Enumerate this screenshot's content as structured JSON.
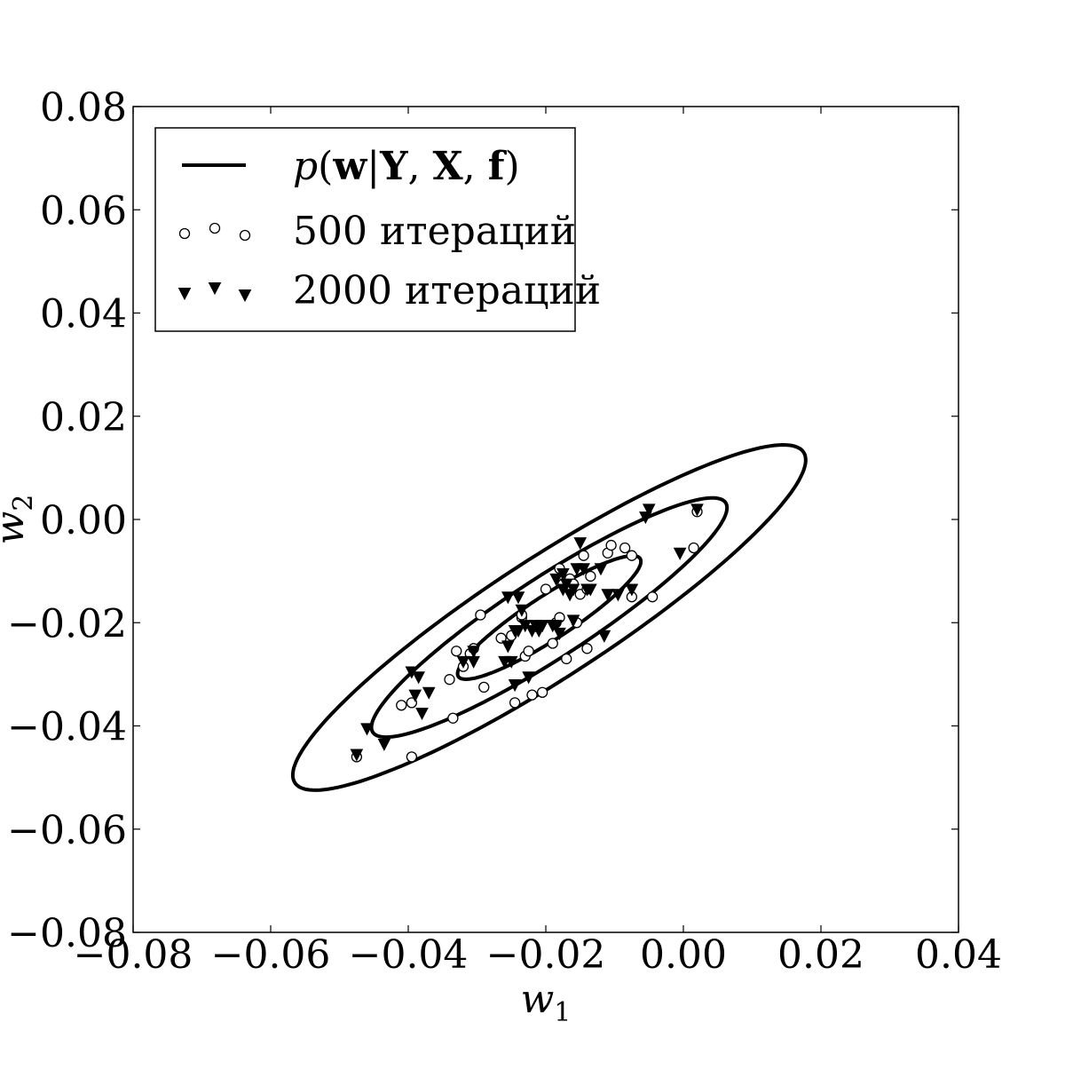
{
  "chart_data": {
    "type": "scatter",
    "title": "",
    "xlabel": "w",
    "xlabel_sub": "1",
    "ylabel": "w",
    "ylabel_sub": "2",
    "xlim": [
      -0.08,
      0.04
    ],
    "ylim": [
      -0.08,
      0.08
    ],
    "xticks": [
      -0.08,
      -0.06,
      -0.04,
      -0.02,
      0.0,
      0.02,
      0.04
    ],
    "xtick_labels": [
      "−0.08",
      "−0.06",
      "−0.04",
      "−0.02",
      "0.00",
      "0.02",
      "0.04"
    ],
    "yticks": [
      0.08,
      0.06,
      0.04,
      0.02,
      0.0,
      -0.02,
      -0.04,
      -0.06,
      -0.08
    ],
    "ytick_labels": [
      "0.08",
      "0.06",
      "0.04",
      "0.02",
      "0.00",
      "−0.02",
      "−0.04",
      "−0.06",
      "−0.08"
    ],
    "grid": false,
    "legend_position": "top-left",
    "legend": {
      "contour_label": {
        "p": "p",
        "open": "(",
        "w": "w",
        "bar": "|",
        "Y": "Y",
        "sep1": ", ",
        "X": "X",
        "sep2": ", ",
        "f": "f",
        "close": ")"
      },
      "series_labels": [
        "500 итераций",
        "2000 итераций"
      ]
    },
    "contours": {
      "name": "p(w|Y,X,f)",
      "style": "line",
      "color": "#000000",
      "ellipses": [
        {
          "center": [
            -0.0195,
            -0.019
          ],
          "semi_major": 0.049,
          "semi_minor": 0.0104,
          "angle_deg": 41.6
        },
        {
          "center": [
            -0.0195,
            -0.019
          ],
          "semi_major": 0.034,
          "semi_minor": 0.007,
          "angle_deg": 41.6
        },
        {
          "center": [
            -0.0195,
            -0.019
          ],
          "semi_major": 0.0175,
          "semi_minor": 0.0038,
          "angle_deg": 41.6
        }
      ]
    },
    "series": [
      {
        "name": "500 итераций",
        "marker": "circle-open",
        "color": "#000000",
        "points": [
          [
            -0.0475,
            -0.046
          ],
          [
            -0.0395,
            -0.0355
          ],
          [
            -0.041,
            -0.036
          ],
          [
            -0.0395,
            -0.046
          ],
          [
            -0.034,
            -0.031
          ],
          [
            -0.0335,
            -0.0385
          ],
          [
            -0.033,
            -0.0255
          ],
          [
            -0.032,
            -0.0285
          ],
          [
            -0.031,
            -0.026
          ],
          [
            -0.0305,
            -0.025
          ],
          [
            -0.0295,
            -0.0185
          ],
          [
            -0.029,
            -0.0325
          ],
          [
            -0.0265,
            -0.023
          ],
          [
            -0.025,
            -0.0225
          ],
          [
            -0.0245,
            -0.0355
          ],
          [
            -0.0235,
            -0.019
          ],
          [
            -0.0235,
            -0.0185
          ],
          [
            -0.023,
            -0.0265
          ],
          [
            -0.0225,
            -0.0255
          ],
          [
            -0.022,
            -0.034
          ],
          [
            -0.0205,
            -0.0335
          ],
          [
            -0.02,
            -0.0135
          ],
          [
            -0.019,
            -0.024
          ],
          [
            -0.0185,
            -0.02
          ],
          [
            -0.018,
            -0.019
          ],
          [
            -0.018,
            -0.0095
          ],
          [
            -0.0175,
            -0.0125
          ],
          [
            -0.017,
            -0.027
          ],
          [
            -0.0165,
            -0.0115
          ],
          [
            -0.016,
            -0.0125
          ],
          [
            -0.0155,
            -0.02
          ],
          [
            -0.015,
            -0.0145
          ],
          [
            -0.0145,
            -0.007
          ],
          [
            -0.014,
            -0.0135
          ],
          [
            -0.014,
            -0.025
          ],
          [
            -0.0135,
            -0.011
          ],
          [
            -0.011,
            -0.0065
          ],
          [
            -0.0105,
            -0.005
          ],
          [
            -0.0085,
            -0.0055
          ],
          [
            -0.0075,
            -0.015
          ],
          [
            -0.0075,
            -0.007
          ],
          [
            -0.0045,
            -0.015
          ],
          [
            0.0015,
            -0.0055
          ],
          [
            0.002,
            0.0015
          ]
        ]
      },
      {
        "name": "2000 итераций",
        "marker": "triangle-down-filled",
        "color": "#000000",
        "points": [
          [
            -0.0475,
            -0.0455
          ],
          [
            -0.046,
            -0.0405
          ],
          [
            -0.0435,
            -0.0435
          ],
          [
            -0.0395,
            -0.0295
          ],
          [
            -0.039,
            -0.034
          ],
          [
            -0.0385,
            -0.0305
          ],
          [
            -0.038,
            -0.0375
          ],
          [
            -0.037,
            -0.0335
          ],
          [
            -0.032,
            -0.0275
          ],
          [
            -0.0305,
            -0.0275
          ],
          [
            -0.0305,
            -0.0255
          ],
          [
            -0.026,
            -0.0275
          ],
          [
            -0.0255,
            -0.0245
          ],
          [
            -0.0255,
            -0.015
          ],
          [
            -0.025,
            -0.0275
          ],
          [
            -0.0245,
            -0.032
          ],
          [
            -0.0245,
            -0.0215
          ],
          [
            -0.024,
            -0.0215
          ],
          [
            -0.024,
            -0.015
          ],
          [
            -0.0235,
            -0.0175
          ],
          [
            -0.023,
            -0.0205
          ],
          [
            -0.0225,
            -0.0305
          ],
          [
            -0.022,
            -0.0215
          ],
          [
            -0.0215,
            -0.0205
          ],
          [
            -0.021,
            -0.0215
          ],
          [
            -0.0205,
            -0.0205
          ],
          [
            -0.019,
            -0.0205
          ],
          [
            -0.0185,
            -0.0115
          ],
          [
            -0.0185,
            -0.0205
          ],
          [
            -0.018,
            -0.022
          ],
          [
            -0.0175,
            -0.0105
          ],
          [
            -0.0175,
            -0.0135
          ],
          [
            -0.017,
            -0.0125
          ],
          [
            -0.0165,
            -0.0145
          ],
          [
            -0.016,
            -0.0135
          ],
          [
            -0.016,
            -0.0195
          ],
          [
            -0.0155,
            -0.0095
          ],
          [
            -0.015,
            -0.0045
          ],
          [
            -0.0145,
            -0.0095
          ],
          [
            -0.014,
            -0.0135
          ],
          [
            -0.0135,
            -0.0135
          ],
          [
            -0.012,
            -0.0095
          ],
          [
            -0.0115,
            -0.0225
          ],
          [
            -0.011,
            -0.0145
          ],
          [
            -0.0095,
            -0.0145
          ],
          [
            -0.0075,
            -0.0135
          ],
          [
            -0.0055,
            0.0005
          ],
          [
            -0.005,
            0.002
          ],
          [
            -0.0005,
            -0.0065
          ],
          [
            0.002,
            0.002
          ]
        ]
      }
    ]
  }
}
